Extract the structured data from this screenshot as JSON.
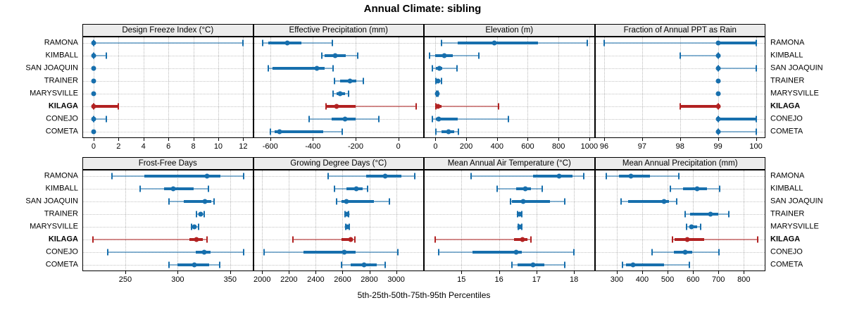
{
  "title": "Annual Climate: sibling",
  "xlabel": "5th-25th-50th-75th-95th Percentiles",
  "stations": [
    "RAMONA",
    "KIMBALL",
    "SAN JOAQUIN",
    "TRAINER",
    "MARYSVILLE",
    "KILAGA",
    "CONEJO",
    "COMETA"
  ],
  "highlight_station": "KILAGA",
  "colors": {
    "normal": "#176fad",
    "highlight": "#b22222",
    "strip_bg": "#ececec",
    "panel_border": "#000000",
    "grid": "#bdbdbd"
  },
  "chart_data": [
    {
      "type": "scatter",
      "title": "Design Freeze Index (°C)",
      "row": 0,
      "col": 0,
      "xlim": [
        -0.9,
        12.8
      ],
      "ticks": [
        0,
        2,
        4,
        6,
        8,
        10,
        12
      ],
      "note": "values are [p5,p25,p50,p75,p95] per station",
      "values": [
        [
          0,
          0,
          0,
          0,
          12
        ],
        [
          0,
          0,
          0,
          0,
          1
        ],
        [
          0,
          0,
          0,
          0,
          0
        ],
        [
          0,
          0,
          0,
          0,
          0
        ],
        [
          0,
          0,
          0,
          0,
          0
        ],
        [
          0,
          0,
          0,
          2,
          2
        ],
        [
          0,
          0,
          0,
          0,
          1
        ],
        [
          0,
          0,
          0,
          0,
          0
        ]
      ]
    },
    {
      "type": "scatter",
      "title": "Effective Precipitation (mm)",
      "row": 0,
      "col": 1,
      "xlim": [
        -680,
        120
      ],
      "ticks": [
        -600,
        -400,
        -200,
        0
      ],
      "values": [
        [
          -635,
          -610,
          -520,
          -455,
          -310
        ],
        [
          -360,
          -345,
          -295,
          -245,
          -190
        ],
        [
          -610,
          -590,
          -380,
          -345,
          -305
        ],
        [
          -298,
          -273,
          -225,
          -198,
          -164
        ],
        [
          -305,
          -290,
          -273,
          -250,
          -234
        ],
        [
          -340,
          -335,
          -288,
          -200,
          85
        ],
        [
          -417,
          -313,
          -251,
          -200,
          -90
        ],
        [
          -599,
          -580,
          -556,
          -352,
          -264
        ]
      ]
    },
    {
      "type": "scatter",
      "title": "Elevation (m)",
      "row": 0,
      "col": 2,
      "xlim": [
        -75,
        1035
      ],
      "ticks": [
        0,
        200,
        400,
        600,
        800,
        1000
      ],
      "values": [
        [
          40,
          145,
          385,
          665,
          985
        ],
        [
          -40,
          0,
          60,
          115,
          280
        ],
        [
          -20,
          5,
          25,
          45,
          140
        ],
        [
          5,
          12,
          18,
          28,
          38
        ],
        [
          8,
          10,
          12,
          15,
          18
        ],
        [
          5,
          10,
          15,
          40,
          412
        ],
        [
          -20,
          5,
          20,
          145,
          475
        ],
        [
          5,
          40,
          87,
          122,
          148
        ]
      ]
    },
    {
      "type": "scatter",
      "title": "Fraction of Annual PPT as Rain",
      "row": 0,
      "col": 3,
      "xlim": [
        95.75,
        100.25
      ],
      "ticks": [
        96,
        97,
        98,
        99,
        100
      ],
      "values": [
        [
          96,
          99,
          99,
          100,
          100
        ],
        [
          98,
          99,
          99,
          99,
          99
        ],
        [
          99,
          99,
          99,
          99,
          100
        ],
        [
          99,
          99,
          99,
          99,
          99
        ],
        [
          99,
          99,
          99,
          99,
          99
        ],
        [
          98,
          98,
          99,
          99,
          99
        ],
        [
          99,
          99,
          99,
          100,
          100
        ],
        [
          99,
          99,
          99,
          99,
          100
        ]
      ]
    },
    {
      "type": "scatter",
      "title": "Frost-Free Days",
      "row": 1,
      "col": 0,
      "xlim": [
        209,
        372
      ],
      "ticks": [
        250,
        300,
        350
      ],
      "values": [
        [
          237,
          268,
          328,
          341,
          363
        ],
        [
          264,
          287,
          296,
          315,
          329
        ],
        [
          292,
          306,
          326,
          332,
          335
        ],
        [
          318,
          320,
          322,
          324,
          325
        ],
        [
          313,
          315,
          316,
          318,
          320
        ],
        [
          219,
          311,
          318,
          324,
          328
        ],
        [
          233,
          317,
          325,
          331,
          363
        ],
        [
          292,
          300,
          316,
          330,
          340
        ]
      ]
    },
    {
      "type": "scatter",
      "title": "Growing Degree Days (°C)",
      "row": 1,
      "col": 1,
      "xlim": [
        1933,
        3207
      ],
      "ticks": [
        2000,
        2200,
        2400,
        2600,
        2800,
        3000
      ],
      "values": [
        [
          2490,
          2775,
          2920,
          3040,
          3140
        ],
        [
          2540,
          2630,
          2705,
          2750,
          2785
        ],
        [
          2555,
          2590,
          2630,
          2835,
          2950
        ],
        [
          2620,
          2626,
          2632,
          2638,
          2645
        ],
        [
          2625,
          2630,
          2635,
          2641,
          2648
        ],
        [
          2230,
          2590,
          2660,
          2675,
          2690
        ],
        [
          2015,
          2310,
          2615,
          2695,
          3010
        ],
        [
          2590,
          2660,
          2760,
          2855,
          2920
        ]
      ]
    },
    {
      "type": "scatter",
      "title": "Mean Annual Air Temperature (°C)",
      "row": 1,
      "col": 2,
      "xlim": [
        14.0,
        18.55
      ],
      "ticks": [
        15,
        16,
        17,
        18
      ],
      "values": [
        [
          15.25,
          16.9,
          17.6,
          17.95,
          18.25
        ],
        [
          15.95,
          16.45,
          16.7,
          16.85,
          17.15
        ],
        [
          16.3,
          16.35,
          16.65,
          17.35,
          17.75
        ],
        [
          16.5,
          16.52,
          16.55,
          16.57,
          16.6
        ],
        [
          16.52,
          16.54,
          16.56,
          16.58,
          16.6
        ],
        [
          14.3,
          16.4,
          16.63,
          16.75,
          16.85
        ],
        [
          14.4,
          15.3,
          16.45,
          16.6,
          18.0
        ],
        [
          16.35,
          16.5,
          16.9,
          17.2,
          17.75
        ]
      ]
    },
    {
      "type": "scatter",
      "title": "Mean Annual Precipitation (mm)",
      "row": 1,
      "col": 3,
      "xlim": [
        213,
        885
      ],
      "ticks": [
        300,
        400,
        500,
        600,
        700,
        800
      ],
      "values": [
        [
          260,
          308,
          357,
          430,
          545
        ],
        [
          512,
          560,
          615,
          655,
          705
        ],
        [
          318,
          345,
          485,
          505,
          535
        ],
        [
          570,
          588,
          668,
          700,
          740
        ],
        [
          575,
          585,
          595,
          615,
          630
        ],
        [
          520,
          527,
          578,
          643,
          855
        ],
        [
          438,
          525,
          568,
          598,
          703
        ],
        [
          322,
          336,
          365,
          485,
          587
        ]
      ]
    }
  ]
}
